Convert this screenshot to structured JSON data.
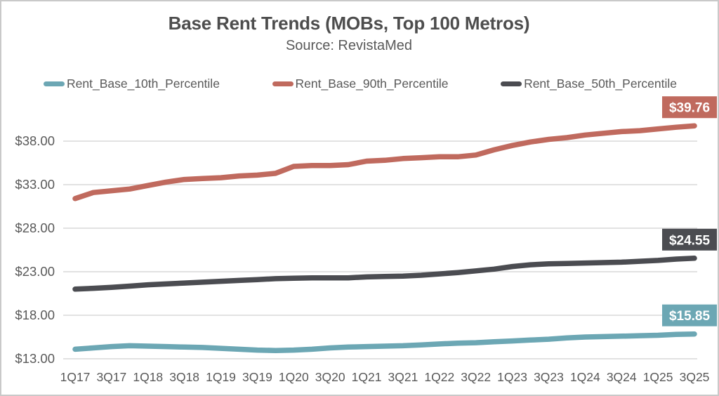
{
  "chart_data": {
    "type": "line",
    "title": "Base Rent Trends (MOBs, Top 100 Metros)",
    "subtitle": "Source: RevistaMed",
    "grid": "horizontal",
    "legend_position": "top",
    "x": [
      "1Q17",
      "2Q17",
      "3Q17",
      "4Q17",
      "1Q18",
      "2Q18",
      "3Q18",
      "4Q18",
      "1Q19",
      "2Q19",
      "3Q19",
      "4Q19",
      "1Q20",
      "2Q20",
      "3Q20",
      "4Q20",
      "1Q21",
      "2Q21",
      "3Q21",
      "4Q21",
      "1Q22",
      "2Q22",
      "3Q22",
      "4Q22",
      "1Q23",
      "2Q23",
      "3Q23",
      "4Q23",
      "1Q24",
      "2Q24",
      "3Q24",
      "4Q24",
      "1Q25",
      "2Q25",
      "3Q25"
    ],
    "x_tick_labels": [
      "1Q17",
      "3Q17",
      "1Q18",
      "3Q18",
      "1Q19",
      "3Q19",
      "1Q20",
      "3Q20",
      "1Q21",
      "3Q21",
      "1Q22",
      "3Q22",
      "1Q23",
      "3Q23",
      "1Q24",
      "3Q24",
      "1Q25",
      "3Q25"
    ],
    "y_axis": {
      "tick_values": [
        13,
        18,
        23,
        28,
        33,
        38
      ],
      "tick_labels": [
        "$13.00",
        "$18.00",
        "$23.00",
        "$28.00",
        "$33.00",
        "$38.00"
      ],
      "range": [
        13,
        40.5
      ]
    },
    "series": [
      {
        "name": "Rent_Base_10th_Percentile",
        "color": "#6CA7B4",
        "end_label": "$15.85",
        "end_value": 15.85,
        "values": [
          14.1,
          14.25,
          14.4,
          14.5,
          14.45,
          14.4,
          14.35,
          14.3,
          14.2,
          14.1,
          14.0,
          13.95,
          14.0,
          14.1,
          14.25,
          14.35,
          14.4,
          14.45,
          14.5,
          14.6,
          14.7,
          14.8,
          14.85,
          14.95,
          15.05,
          15.15,
          15.25,
          15.4,
          15.5,
          15.55,
          15.6,
          15.65,
          15.7,
          15.8,
          15.85
        ]
      },
      {
        "name": "Rent_Base_90th_Percentile",
        "color": "#C06A5E",
        "end_label": "$39.76",
        "end_value": 39.76,
        "values": [
          31.4,
          32.1,
          32.3,
          32.5,
          32.9,
          33.3,
          33.6,
          33.7,
          33.8,
          34.0,
          34.1,
          34.3,
          35.1,
          35.2,
          35.2,
          35.3,
          35.7,
          35.8,
          36.0,
          36.1,
          36.2,
          36.2,
          36.4,
          37.0,
          37.5,
          37.9,
          38.2,
          38.4,
          38.7,
          38.9,
          39.1,
          39.2,
          39.4,
          39.6,
          39.76
        ]
      },
      {
        "name": "Rent_Base_50th_Percentile",
        "color": "#4B4C51",
        "end_label": "$24.55",
        "end_value": 24.55,
        "values": [
          21.0,
          21.1,
          21.2,
          21.35,
          21.5,
          21.6,
          21.7,
          21.8,
          21.9,
          22.0,
          22.1,
          22.2,
          22.25,
          22.3,
          22.3,
          22.3,
          22.4,
          22.45,
          22.5,
          22.6,
          22.75,
          22.9,
          23.1,
          23.3,
          23.6,
          23.8,
          23.9,
          23.95,
          24.0,
          24.05,
          24.1,
          24.2,
          24.3,
          24.45,
          24.55
        ]
      }
    ],
    "colors": {
      "gridline": "#D9D9D9",
      "axis_text": "#595959",
      "title_text": "#4D4D4D",
      "end_label_text": "#FFFFFF",
      "canvas_border": "#C9C9C9"
    }
  }
}
